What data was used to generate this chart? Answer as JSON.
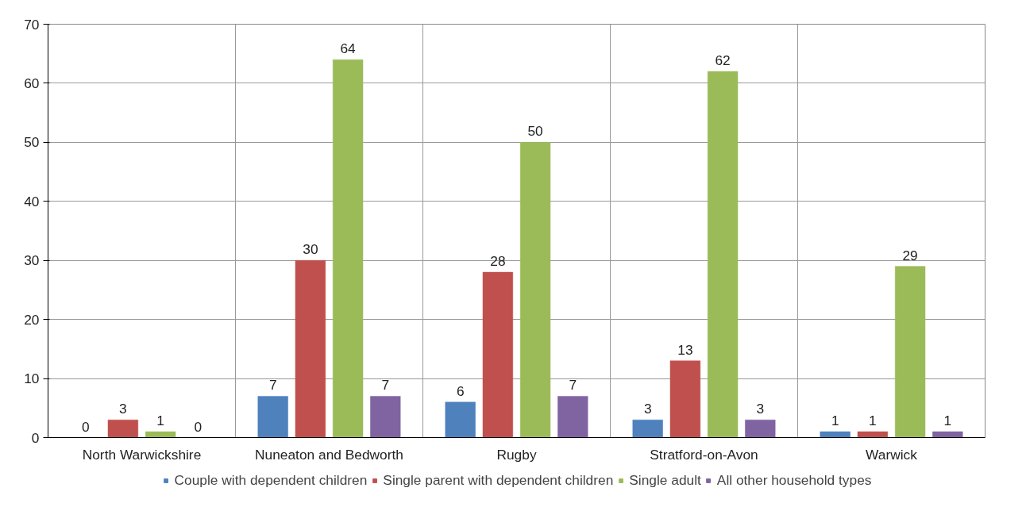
{
  "chart_data": {
    "type": "bar",
    "categories": [
      "North Warwickshire",
      "Nuneaton and Bedworth",
      "Rugby",
      "Stratford-on-Avon",
      "Warwick"
    ],
    "series": [
      {
        "name": "Couple with dependent children",
        "color": "#4f81bd",
        "values": [
          0,
          7,
          6,
          3,
          1
        ]
      },
      {
        "name": "Single parent with dependent children",
        "color": "#c0504d",
        "values": [
          3,
          30,
          28,
          13,
          1
        ]
      },
      {
        "name": "Single adult",
        "color": "#9bbb59",
        "values": [
          1,
          64,
          50,
          62,
          29
        ]
      },
      {
        "name": "All other household types",
        "color": "#8064a2",
        "values": [
          0,
          7,
          7,
          3,
          1
        ]
      }
    ],
    "ylim": [
      0,
      70
    ],
    "yticks": [
      0,
      10,
      20,
      30,
      40,
      50,
      60,
      70
    ],
    "grid": true,
    "legend": "bottom",
    "data_labels": true
  }
}
